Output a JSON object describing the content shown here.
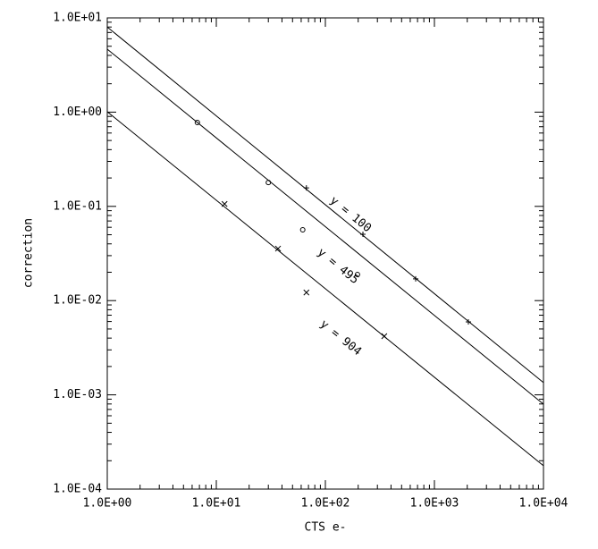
{
  "chart_data": {
    "type": "line",
    "log_x": true,
    "log_y": true,
    "xlabel": "CTS e-",
    "ylabel": "correction",
    "xlim": [
      1,
      10000
    ],
    "ylim": [
      0.0001,
      10
    ],
    "xticks": [
      {
        "value": 1,
        "label": "1.0E+00"
      },
      {
        "value": 10,
        "label": "1.0E+01"
      },
      {
        "value": 100,
        "label": "1.0E+02"
      },
      {
        "value": 1000,
        "label": "1.0E+03"
      },
      {
        "value": 10000,
        "label": "1.0E+04"
      }
    ],
    "yticks": [
      {
        "value": 0.0001,
        "label": "1.0E-04"
      },
      {
        "value": 0.001,
        "label": "1.0E-03"
      },
      {
        "value": 0.01,
        "label": "1.0E-02"
      },
      {
        "value": 0.1,
        "label": "1.0E-01"
      },
      {
        "value": 1,
        "label": "1.0E+00"
      },
      {
        "value": 10,
        "label": "1.0E+01"
      }
    ],
    "series": [
      {
        "name": "y = 100",
        "color": "#000000",
        "marker": "+",
        "x": [
          1,
          10000
        ],
        "values": [
          8.0,
          0.00135
        ],
        "markers": {
          "x": [
            67,
            221,
            673,
            2048
          ],
          "values": [
            0.157,
            0.0506,
            0.017,
            0.00594
          ]
        }
      },
      {
        "name": "y = 495",
        "color": "#000000",
        "marker": "o",
        "x": [
          1,
          10000
        ],
        "values": [
          4.66,
          0.000796
        ],
        "markers": {
          "x": [
            6.7,
            30,
            62,
            197
          ],
          "values": [
            0.776,
            0.179,
            0.0564,
            0.0189
          ]
        }
      },
      {
        "name": "y = 904",
        "color": "#000000",
        "marker": "x",
        "x": [
          1,
          10000
        ],
        "values": [
          1.01,
          0.000177
        ],
        "markers": {
          "x": [
            11.9,
            36.8,
            67,
            347
          ],
          "values": [
            0.106,
            0.0356,
            0.0122,
            0.00419
          ]
        }
      }
    ]
  }
}
